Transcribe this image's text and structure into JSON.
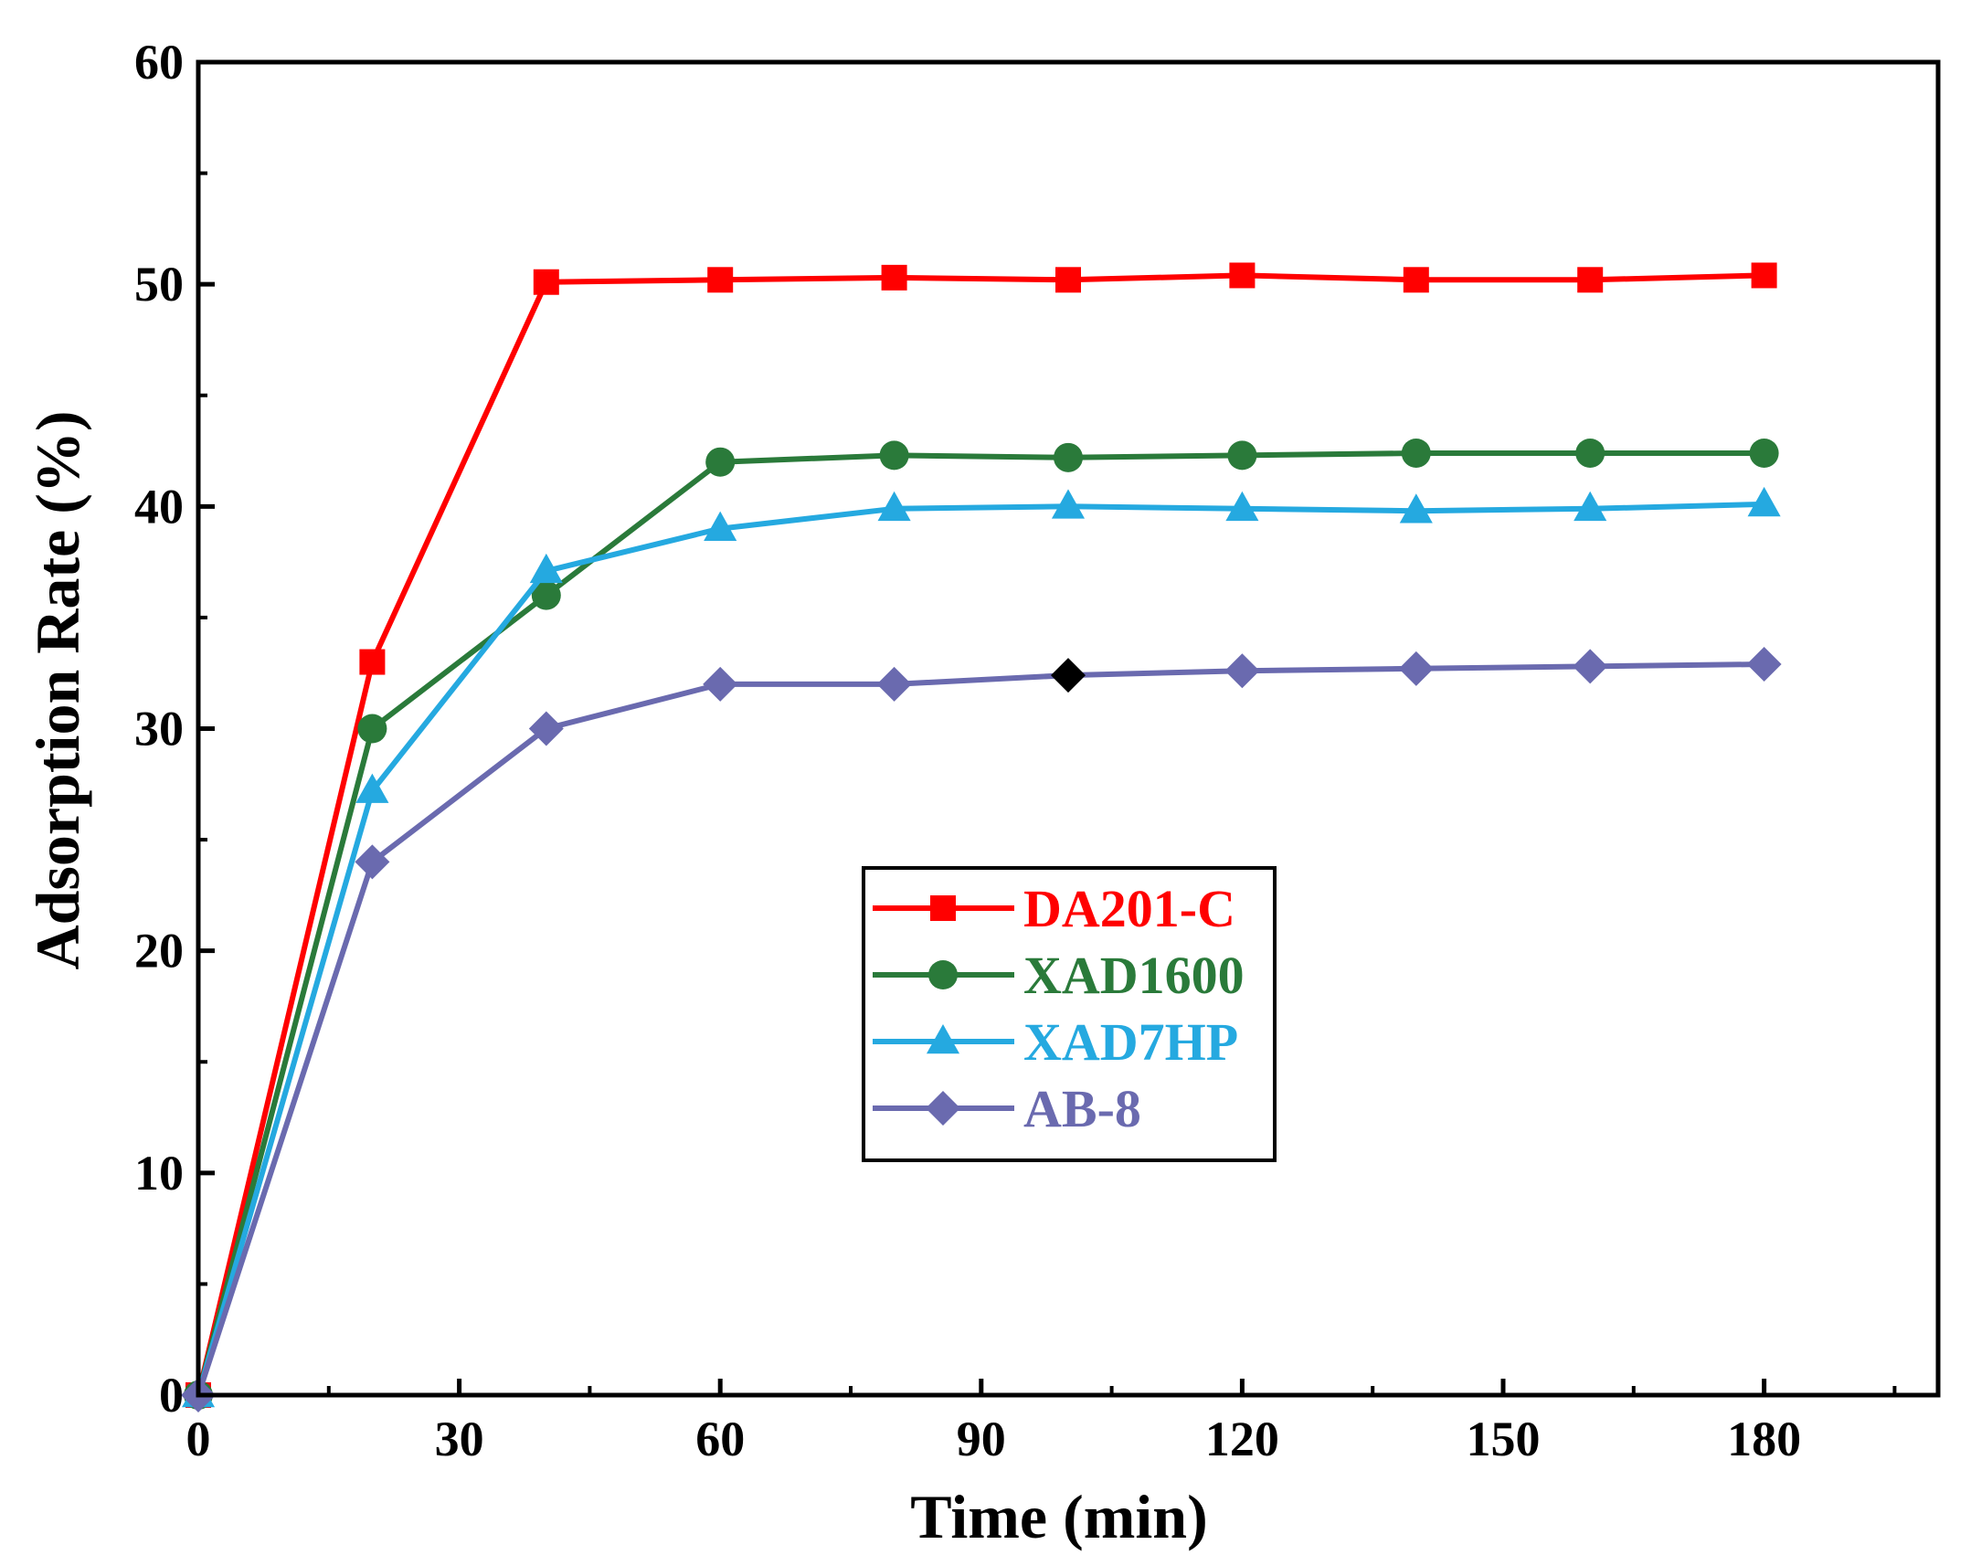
{
  "chart_data": {
    "type": "line",
    "title": "",
    "xlabel": "Time (min)",
    "ylabel": "Adsorption Rate (%)",
    "xlim": [
      0,
      200
    ],
    "ylim": [
      0,
      60
    ],
    "xticks": [
      0,
      30,
      60,
      90,
      120,
      150,
      180
    ],
    "xtick_labels": [
      "0",
      "30",
      "60",
      "90",
      "120",
      "150",
      "180"
    ],
    "yticks": [
      0,
      10,
      20,
      30,
      40,
      50,
      60
    ],
    "ytick_labels": [
      "0",
      "10",
      "20",
      "30",
      "40",
      "50",
      "60"
    ],
    "grid": false,
    "legend_position": "center-right",
    "x": [
      0,
      20,
      40,
      60,
      80,
      100,
      120,
      140,
      160,
      180
    ],
    "series": [
      {
        "name": "DA201-C",
        "color": "#ff0000",
        "marker": "square",
        "values": [
          0,
          33.0,
          50.1,
          50.2,
          50.3,
          50.2,
          50.4,
          50.2,
          50.2,
          50.4
        ]
      },
      {
        "name": "XAD1600",
        "color": "#2a7a3a",
        "marker": "circle",
        "values": [
          0,
          30.0,
          36.0,
          42.0,
          42.3,
          42.2,
          42.3,
          42.4,
          42.4,
          42.4
        ]
      },
      {
        "name": "XAD7HP",
        "color": "#25a9e0",
        "marker": "triangle",
        "values": [
          0,
          27.2,
          37.1,
          39.0,
          39.9,
          40.0,
          39.9,
          39.8,
          39.9,
          40.1
        ]
      },
      {
        "name": "AB-8",
        "color": "#6a6aaf",
        "marker": "diamond",
        "values": [
          0,
          24.0,
          30.0,
          32.0,
          32.0,
          32.4,
          32.6,
          32.7,
          32.8,
          32.9
        ]
      }
    ],
    "highlighted_point": {
      "series": "AB-8",
      "x": 100,
      "color": "#000000"
    }
  }
}
